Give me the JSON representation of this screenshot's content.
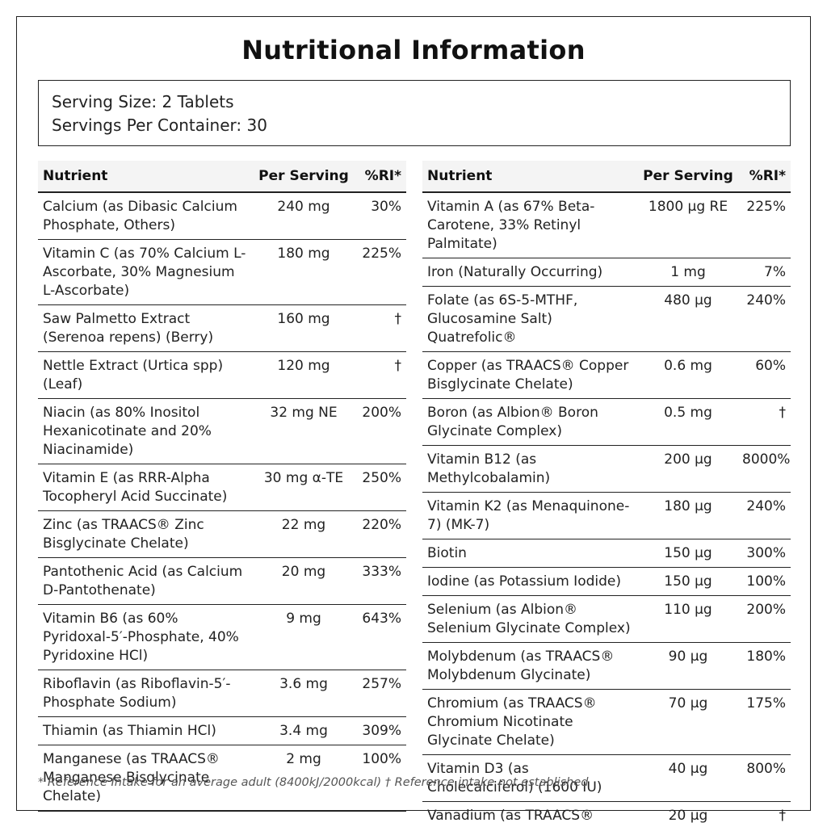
{
  "title": "Nutritional Information",
  "serving": {
    "size": "Serving Size: 2 Tablets",
    "per_container": "Servings Per Container: 30"
  },
  "table": {
    "headers": {
      "nutrient": "Nutrient",
      "per_serving": "Per Serving",
      "ri": "%RI*"
    },
    "left_rows": [
      {
        "name": "Calcium (as Dibasic Calcium Phosphate, Others)",
        "amount": "240 mg",
        "ri": "30%"
      },
      {
        "name": "Vitamin C (as 70% Calcium L-Ascorbate, 30% Magnesium L-Ascorbate)",
        "amount": "180 mg",
        "ri": "225%"
      },
      {
        "name": "Saw Palmetto Extract (Serenoa repens) (Berry)",
        "amount": "160 mg",
        "ri": "†"
      },
      {
        "name": "Nettle Extract (Urtica spp) (Leaf)",
        "amount": "120 mg",
        "ri": "†"
      },
      {
        "name": "Niacin (as 80% Inositol Hexanicotinate and 20% Niacinamide)",
        "amount": "32 mg NE",
        "ri": "200%"
      },
      {
        "name": "Vitamin E (as RRR-Alpha Tocopheryl Acid Succinate)",
        "amount": "30 mg α-TE",
        "ri": "250%"
      },
      {
        "name": "Zinc (as TRAACS® Zinc Bisglycinate Chelate)",
        "amount": "22 mg",
        "ri": "220%"
      },
      {
        "name": "Pantothenic Acid (as Calcium D-Pantothenate)",
        "amount": "20 mg",
        "ri": "333%"
      },
      {
        "name": "Vitamin B6 (as 60% Pyridoxal-5′-Phosphate, 40% Pyridoxine HCl)",
        "amount": "9 mg",
        "ri": "643%"
      },
      {
        "name": "Riboflavin (as Riboflavin-5′-Phosphate Sodium)",
        "amount": "3.6 mg",
        "ri": "257%"
      },
      {
        "name": "Thiamin (as Thiamin HCl)",
        "amount": "3.4 mg",
        "ri": "309%"
      },
      {
        "name": "Manganese (as TRAACS® Manganese Bisglycinate Chelate)",
        "amount": "2 mg",
        "ri": "100%"
      }
    ],
    "right_rows": [
      {
        "name": "Vitamin A (as 67% Beta-Carotene, 33% Retinyl Palmitate)",
        "amount": "1800 µg RE",
        "ri": "225%"
      },
      {
        "name": "Iron (Naturally Occurring)",
        "amount": "1 mg",
        "ri": "7%"
      },
      {
        "name": "Folate (as 6S-5-MTHF, Glucosamine Salt) Quatrefolic®",
        "amount": "480 µg",
        "ri": "240%"
      },
      {
        "name": "Copper (as TRAACS® Copper Bisglycinate Chelate)",
        "amount": "0.6 mg",
        "ri": "60%"
      },
      {
        "name": "Boron (as Albion® Boron Glycinate Complex)",
        "amount": "0.5 mg",
        "ri": "†"
      },
      {
        "name": "Vitamin B12 (as Methylcobalamin)",
        "amount": "200 µg",
        "ri": "8000%"
      },
      {
        "name": "Vitamin K2 (as Menaquinone-7) (MK-7)",
        "amount": "180 µg",
        "ri": "240%"
      },
      {
        "name": "Biotin",
        "amount": "150 µg",
        "ri": "300%"
      },
      {
        "name": "Iodine (as Potassium Iodide)",
        "amount": "150 µg",
        "ri": "100%"
      },
      {
        "name": "Selenium (as Albion® Selenium Glycinate Complex)",
        "amount": "110 µg",
        "ri": "200%"
      },
      {
        "name": "Molybdenum (as TRAACS® Molybdenum Glycinate)",
        "amount": "90 µg",
        "ri": "180%"
      },
      {
        "name": "Chromium (as TRAACS® Chromium Nicotinate Glycinate Chelate)",
        "amount": "70 µg",
        "ri": "175%"
      },
      {
        "name": "Vitamin D3 (as Cholecalciferol) (1600 IU)",
        "amount": "40 µg",
        "ri": "800%"
      },
      {
        "name": "Vanadium (as TRAACS® Vanadium Nicotinate Glycinate Chelate)",
        "amount": "20 µg",
        "ri": "†"
      }
    ]
  },
  "footnote": "* Reference Intake for an average adult (8400kJ/2000kcal) † Reference intake not established"
}
